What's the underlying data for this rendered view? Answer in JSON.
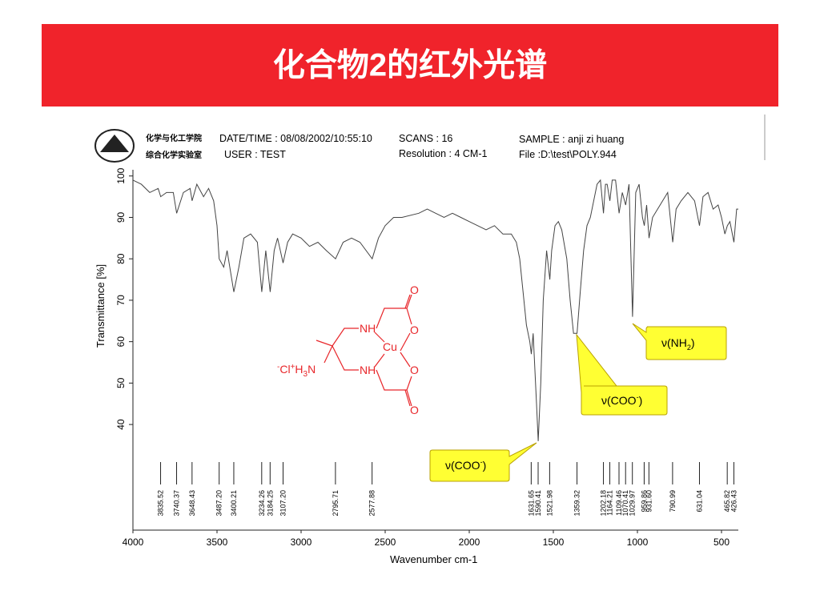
{
  "title": "化合物2的红外光谱",
  "header": {
    "institute": [
      "化学与化工学院",
      "综合化学实验室"
    ],
    "datetime": "DATE/TIME : 08/08/2002/10:55:10",
    "user": "USER : TEST",
    "scans": "SCANS : 16",
    "resolution": "Resolution : 4 CM-1",
    "sample": "SAMPLE : anji zi huang",
    "file": "File :D:\\test\\POLY.944"
  },
  "structure": {
    "labels": [
      "O",
      "NH",
      "O",
      "Cu",
      "NH",
      "O",
      "O"
    ],
    "salt": [
      "-",
      "Cl",
      "+",
      "H",
      "3",
      "N"
    ]
  },
  "callouts": [
    {
      "parts": [
        "ν(NH",
        "2",
        ")"
      ]
    },
    {
      "parts": [
        "ν(COO",
        "-",
        ")"
      ]
    },
    {
      "parts": [
        "ν(COO",
        "-",
        ")"
      ]
    }
  ],
  "chart_data": {
    "type": "line",
    "color": "#444444",
    "xlabel": "Wavenumber cm-1",
    "ylabel": "Transmittance [%]",
    "xlim": [
      4000,
      400
    ],
    "ylim": [
      14.5,
      101.5
    ],
    "xticks": [
      4000,
      3500,
      3000,
      2500,
      2000,
      1500,
      1000,
      500
    ],
    "yticks": [
      40,
      50,
      60,
      70,
      80,
      90,
      100
    ],
    "x": [
      4000,
      3950,
      3900,
      3850,
      3835,
      3800,
      3760,
      3740,
      3700,
      3660,
      3648,
      3620,
      3580,
      3550,
      3520,
      3500,
      3487,
      3460,
      3440,
      3400,
      3370,
      3340,
      3300,
      3260,
      3234,
      3210,
      3184,
      3160,
      3140,
      3107,
      3080,
      3050,
      3000,
      2950,
      2900,
      2850,
      2795,
      2750,
      2700,
      2650,
      2577,
      2540,
      2500,
      2450,
      2400,
      2300,
      2250,
      2200,
      2150,
      2100,
      2050,
      2000,
      1950,
      1900,
      1850,
      1800,
      1750,
      1720,
      1700,
      1680,
      1660,
      1640,
      1631,
      1620,
      1600,
      1590,
      1575,
      1560,
      1540,
      1521,
      1510,
      1490,
      1470,
      1450,
      1420,
      1400,
      1380,
      1359,
      1340,
      1320,
      1300,
      1280,
      1260,
      1240,
      1220,
      1202,
      1190,
      1180,
      1164,
      1150,
      1130,
      1109,
      1090,
      1070,
      1050,
      1029,
      1010,
      990,
      970,
      959,
      945,
      931,
      910,
      880,
      850,
      820,
      790,
      770,
      740,
      700,
      660,
      631,
      610,
      580,
      550,
      520,
      500,
      480,
      465,
      450,
      426,
      410,
      400
    ],
    "values": [
      99,
      98,
      96,
      97,
      95,
      96,
      96,
      91,
      96,
      97,
      94,
      98,
      95,
      97,
      94,
      88,
      80,
      78,
      82,
      72,
      78,
      85,
      86,
      84,
      72,
      82,
      72,
      82,
      85,
      79,
      84,
      86,
      85,
      83,
      84,
      82,
      80,
      84,
      85,
      84,
      80,
      85,
      88,
      90,
      90,
      91,
      92,
      91,
      90,
      91,
      90,
      89,
      88,
      87,
      88,
      86,
      86,
      84,
      80,
      72,
      64,
      60,
      57,
      62,
      45,
      36,
      50,
      70,
      82,
      75,
      82,
      88,
      89,
      87,
      80,
      70,
      62,
      62,
      72,
      82,
      88,
      90,
      94,
      98,
      99,
      91,
      98,
      98,
      94,
      99,
      99,
      91,
      96,
      93,
      98,
      66,
      96,
      98,
      90,
      88,
      93,
      85,
      90,
      92,
      94,
      96,
      84,
      92,
      94,
      96,
      94,
      88,
      95,
      96,
      92,
      93,
      90,
      86,
      88,
      89,
      84,
      92,
      92
    ],
    "peaks": [
      3835.52,
      3740.37,
      3648.43,
      {
        "value": 3487.2,
        "label": "3487.20"
      },
      3400.21,
      3234.26,
      3184.25,
      {
        "value": 3107.2,
        "label": "3107.20"
      },
      2795.71,
      2577.88,
      1631.65,
      1590.41,
      1521.98,
      1359.32,
      1202.18,
      1164.21,
      1109.46,
      1070.41,
      1029.97,
      959.86,
      {
        "value": 931.6,
        "label": "931.60"
      },
      790.99,
      631.04,
      465.82,
      426.43
    ]
  }
}
